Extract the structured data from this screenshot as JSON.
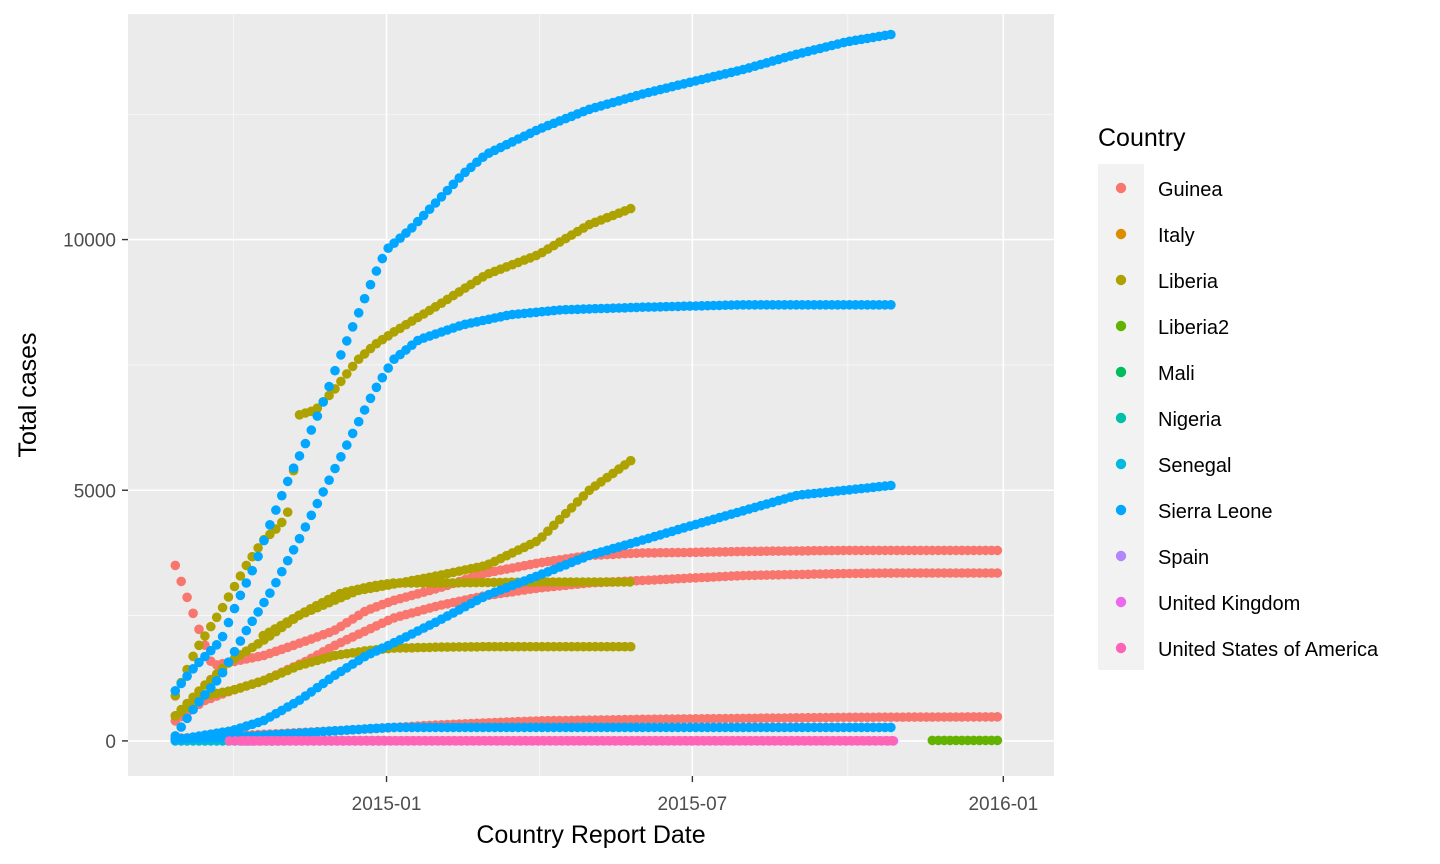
{
  "chart_data": {
    "type": "scatter",
    "title": "",
    "xlabel": "Country Report Date",
    "ylabel": "Total cases",
    "x_type": "date",
    "xlim": [
      "2014-08-01",
      "2016-01-31"
    ],
    "ylim": [
      -700,
      14500
    ],
    "x_ticks": [
      "2015-01",
      "2015-07",
      "2016-01"
    ],
    "x_ticks_at": [
      "2015-01-01",
      "2015-07-01",
      "2016-01-01"
    ],
    "y_ticks": [
      "0",
      "5000",
      "10000"
    ],
    "y_ticks_at": [
      0,
      5000,
      10000
    ],
    "grid": true,
    "panel_background": "#ebebeb",
    "legend": {
      "title": "Country",
      "position": "right",
      "entries": [
        "Guinea",
        "Italy",
        "Liberia",
        "Liberia2",
        "Mali",
        "Nigeria",
        "Senegal",
        "Sierra Leone",
        "Spain",
        "United Kingdom",
        "United States of America"
      ]
    },
    "colors": {
      "Guinea": "#F8766D",
      "Italy": "#DB8E00",
      "Liberia": "#AEA200",
      "Liberia2": "#64B200",
      "Mali": "#00BD5C",
      "Nigeria": "#00C1A7",
      "Senegal": "#00BADE",
      "Sierra Leone": "#00A6FF",
      "Spain": "#B385FF",
      "United Kingdom": "#EF67EB",
      "United States of America": "#FF63B6"
    },
    "series": [
      {
        "name": "Guinea",
        "points": [
          [
            "2014-08-29",
            3500
          ],
          [
            "2014-09-20",
            1500
          ],
          [
            "2014-10-20",
            1700
          ],
          [
            "2014-11-15",
            2000
          ],
          [
            "2014-12-01",
            2200
          ],
          [
            "2014-12-20",
            2600
          ],
          [
            "2015-01-05",
            2800
          ],
          [
            "2015-02-01",
            3050
          ],
          [
            "2015-03-01",
            3350
          ],
          [
            "2015-04-01",
            3550
          ],
          [
            "2015-05-01",
            3700
          ],
          [
            "2015-06-01",
            3750
          ],
          [
            "2015-07-01",
            3760
          ],
          [
            "2015-08-01",
            3780
          ],
          [
            "2015-09-01",
            3790
          ],
          [
            "2015-10-01",
            3800
          ],
          [
            "2015-11-01",
            3800
          ],
          [
            "2015-12-29",
            3800
          ]
        ]
      },
      {
        "name": "Guinea",
        "points": [
          [
            "2014-08-29",
            400
          ],
          [
            "2014-09-15",
            800
          ],
          [
            "2014-10-01",
            1000
          ],
          [
            "2014-10-20",
            1200
          ],
          [
            "2014-11-15",
            1600
          ],
          [
            "2014-12-01",
            1900
          ],
          [
            "2014-12-20",
            2200
          ],
          [
            "2015-01-05",
            2450
          ],
          [
            "2015-02-01",
            2700
          ],
          [
            "2015-03-01",
            2900
          ],
          [
            "2015-04-01",
            3050
          ],
          [
            "2015-05-01",
            3150
          ],
          [
            "2015-06-01",
            3200
          ],
          [
            "2015-07-01",
            3250
          ],
          [
            "2015-08-01",
            3300
          ],
          [
            "2015-09-01",
            3320
          ],
          [
            "2015-10-01",
            3340
          ],
          [
            "2015-11-01",
            3350
          ],
          [
            "2015-12-29",
            3350
          ]
        ]
      },
      {
        "name": "Guinea",
        "points": [
          [
            "2014-08-29",
            50
          ],
          [
            "2014-10-01",
            100
          ],
          [
            "2014-11-01",
            150
          ],
          [
            "2014-12-01",
            200
          ],
          [
            "2015-01-01",
            260
          ],
          [
            "2015-02-01",
            320
          ],
          [
            "2015-03-01",
            360
          ],
          [
            "2015-04-01",
            400
          ],
          [
            "2015-06-01",
            430
          ],
          [
            "2015-08-01",
            450
          ],
          [
            "2015-10-01",
            470
          ],
          [
            "2015-12-29",
            480
          ]
        ]
      },
      {
        "name": "Liberia",
        "points": [
          [
            "2014-08-29",
            900
          ],
          [
            "2014-09-10",
            1800
          ],
          [
            "2014-09-25",
            2600
          ],
          [
            "2014-10-10",
            3500
          ],
          [
            "2014-10-20",
            4000
          ],
          [
            "2014-10-30",
            4300
          ],
          [
            "2014-11-05",
            4650
          ],
          [
            "2014-11-10",
            6500
          ],
          [
            "2014-11-20",
            6600
          ],
          [
            "2014-12-01",
            7000
          ],
          [
            "2014-12-15",
            7600
          ],
          [
            "2014-12-25",
            7900
          ],
          [
            "2015-01-05",
            8150
          ],
          [
            "2015-02-01",
            8700
          ],
          [
            "2015-03-01",
            9300
          ],
          [
            "2015-04-01",
            9700
          ],
          [
            "2015-05-01",
            10300
          ],
          [
            "2015-05-28",
            10650
          ]
        ]
      },
      {
        "name": "Liberia",
        "points": [
          [
            "2014-08-29",
            500
          ],
          [
            "2014-09-15",
            1100
          ],
          [
            "2014-10-01",
            1600
          ],
          [
            "2014-10-20",
            2000
          ],
          [
            "2014-11-10",
            2500
          ],
          [
            "2014-12-01",
            2800
          ],
          [
            "2014-12-15",
            3000
          ],
          [
            "2015-01-01",
            3100
          ],
          [
            "2015-02-01",
            3300
          ],
          [
            "2015-03-01",
            3500
          ],
          [
            "2015-04-01",
            4000
          ],
          [
            "2015-05-01",
            5000
          ],
          [
            "2015-05-28",
            5650
          ]
        ]
      },
      {
        "name": "Liberia",
        "points": [
          [
            "2014-08-29",
            500
          ],
          [
            "2014-09-15",
            900
          ],
          [
            "2014-10-01",
            1000
          ],
          [
            "2014-10-20",
            1200
          ],
          [
            "2014-11-10",
            1500
          ],
          [
            "2014-12-01",
            1700
          ],
          [
            "2014-12-20",
            1800
          ],
          [
            "2015-01-05",
            1850
          ],
          [
            "2015-02-01",
            1870
          ],
          [
            "2015-03-01",
            1880
          ],
          [
            "2015-04-01",
            1880
          ],
          [
            "2015-05-28",
            1880
          ]
        ]
      },
      {
        "name": "Liberia",
        "points": [
          [
            "2014-10-20",
            2100
          ],
          [
            "2014-11-15",
            2600
          ],
          [
            "2014-12-05",
            2950
          ],
          [
            "2014-12-25",
            3100
          ],
          [
            "2015-01-05",
            3150
          ],
          [
            "2015-02-01",
            3150
          ],
          [
            "2015-03-01",
            3160
          ],
          [
            "2015-04-01",
            3170
          ],
          [
            "2015-05-28",
            3170
          ]
        ]
      },
      {
        "name": "Liberia2",
        "points": [
          [
            "2015-11-20",
            10
          ],
          [
            "2015-12-01",
            10
          ],
          [
            "2015-12-15",
            10
          ],
          [
            "2015-12-29",
            10
          ]
        ]
      },
      {
        "name": "Mali",
        "points": [
          [
            "2014-10-25",
            1
          ],
          [
            "2014-11-15",
            6
          ],
          [
            "2014-12-10",
            8
          ],
          [
            "2015-01-01",
            8
          ]
        ]
      },
      {
        "name": "Nigeria",
        "points": [
          [
            "2014-08-29",
            18
          ],
          [
            "2014-09-15",
            20
          ],
          [
            "2014-10-01",
            20
          ],
          [
            "2014-10-20",
            20
          ]
        ]
      },
      {
        "name": "Senegal",
        "points": [
          [
            "2014-08-29",
            1
          ],
          [
            "2014-09-15",
            1
          ],
          [
            "2014-10-01",
            1
          ],
          [
            "2014-10-15",
            1
          ]
        ]
      },
      {
        "name": "Sierra Leone",
        "points": [
          [
            "2014-08-29",
            1000
          ],
          [
            "2014-09-10",
            1500
          ],
          [
            "2014-09-25",
            2000
          ],
          [
            "2014-10-05",
            2800
          ],
          [
            "2014-10-15",
            3500
          ],
          [
            "2014-10-25",
            4400
          ],
          [
            "2014-11-05",
            5300
          ],
          [
            "2014-11-15",
            6000
          ],
          [
            "2014-11-25",
            6800
          ],
          [
            "2014-12-05",
            7700
          ],
          [
            "2014-12-15",
            8500
          ],
          [
            "2014-12-25",
            9300
          ],
          [
            "2015-01-01",
            9800
          ],
          [
            "2015-01-15",
            10200
          ],
          [
            "2015-02-01",
            10800
          ],
          [
            "2015-02-15",
            11300
          ],
          [
            "2015-03-01",
            11700
          ],
          [
            "2015-04-01",
            12200
          ],
          [
            "2015-05-01",
            12600
          ],
          [
            "2015-06-01",
            12900
          ],
          [
            "2015-07-01",
            13150
          ],
          [
            "2015-08-01",
            13400
          ],
          [
            "2015-09-01",
            13700
          ],
          [
            "2015-10-01",
            13950
          ],
          [
            "2015-10-28",
            14100
          ]
        ]
      },
      {
        "name": "Sierra Leone",
        "points": [
          [
            "2014-08-29",
            100
          ],
          [
            "2014-09-10",
            700
          ],
          [
            "2014-09-25",
            1300
          ],
          [
            "2014-10-10",
            2200
          ],
          [
            "2014-10-25",
            3000
          ],
          [
            "2014-11-10",
            4000
          ],
          [
            "2014-11-25",
            5000
          ],
          [
            "2014-12-10",
            6000
          ],
          [
            "2014-12-25",
            7000
          ],
          [
            "2015-01-05",
            7600
          ],
          [
            "2015-01-20",
            8000
          ],
          [
            "2015-02-15",
            8300
          ],
          [
            "2015-03-15",
            8500
          ],
          [
            "2015-04-15",
            8600
          ],
          [
            "2015-06-01",
            8650
          ],
          [
            "2015-08-01",
            8700
          ],
          [
            "2015-10-28",
            8700
          ]
        ]
      },
      {
        "name": "Sierra Leone",
        "points": [
          [
            "2014-08-29",
            20
          ],
          [
            "2014-10-01",
            200
          ],
          [
            "2014-10-20",
            400
          ],
          [
            "2014-11-10",
            800
          ],
          [
            "2014-12-01",
            1300
          ],
          [
            "2014-12-20",
            1700
          ],
          [
            "2015-01-05",
            1950
          ],
          [
            "2015-02-01",
            2400
          ],
          [
            "2015-03-01",
            2900
          ],
          [
            "2015-04-01",
            3300
          ],
          [
            "2015-05-01",
            3700
          ],
          [
            "2015-06-01",
            4000
          ],
          [
            "2015-07-01",
            4300
          ],
          [
            "2015-08-01",
            4600
          ],
          [
            "2015-09-01",
            4900
          ],
          [
            "2015-10-28",
            5100
          ]
        ]
      },
      {
        "name": "Sierra Leone",
        "points": [
          [
            "2014-08-29",
            40
          ],
          [
            "2014-10-15",
            100
          ],
          [
            "2014-12-01",
            200
          ],
          [
            "2014-12-25",
            250
          ],
          [
            "2015-01-05",
            270
          ],
          [
            "2015-04-01",
            270
          ],
          [
            "2015-07-01",
            270
          ],
          [
            "2015-10-28",
            270
          ]
        ]
      },
      {
        "name": "Spain",
        "points": [
          [
            "2014-10-08",
            1
          ],
          [
            "2014-11-01",
            1
          ],
          [
            "2014-12-01",
            1
          ],
          [
            "2015-01-01",
            1
          ]
        ]
      },
      {
        "name": "United Kingdom",
        "points": [
          [
            "2014-10-08",
            0
          ],
          [
            "2014-12-29",
            1
          ],
          [
            "2015-04-01",
            1
          ],
          [
            "2015-10-28",
            1
          ]
        ]
      },
      {
        "name": "United States of America",
        "points": [
          [
            "2014-09-30",
            1
          ],
          [
            "2014-11-01",
            4
          ],
          [
            "2015-01-01",
            4
          ],
          [
            "2015-05-01",
            4
          ],
          [
            "2015-08-01",
            4
          ],
          [
            "2015-10-28",
            4
          ]
        ]
      }
    ]
  }
}
